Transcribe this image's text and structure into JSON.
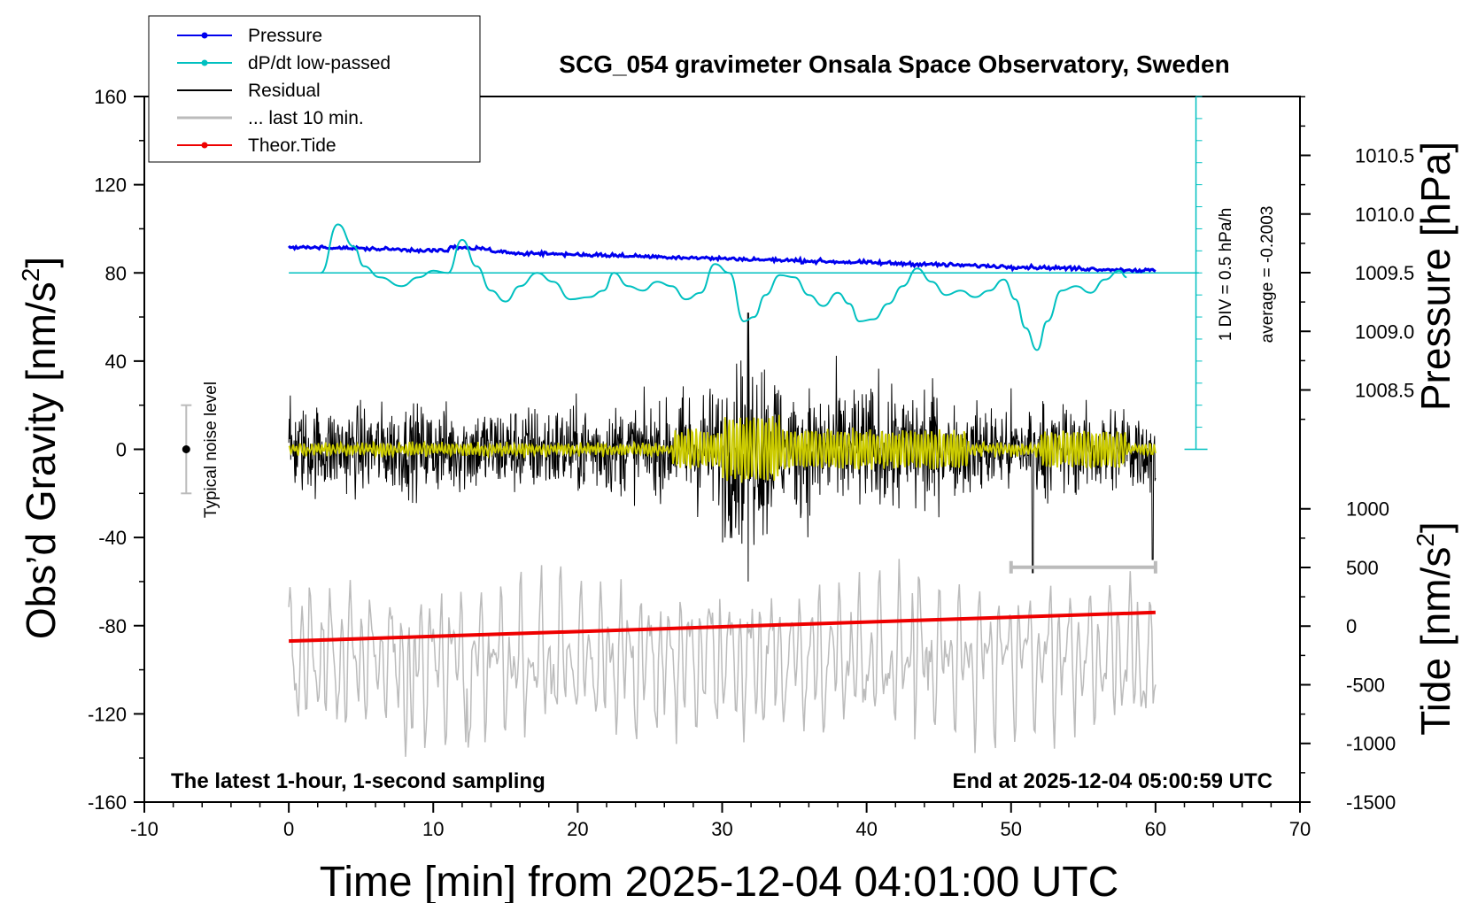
{
  "chart_data": {
    "type": "line",
    "title": "SCG_054 gravimeter Onsala Space Observatory, Sweden",
    "xlabel": "Time [min] from 2025-12-04 04:01:00 UTC",
    "ylabel_left_prefix": "Obs’d Gravity [nm/s",
    "ylabel_left_sup": "2",
    "ylabel_left_suffix": "]",
    "ylabel_pressure": "Pressure [hPa]",
    "ylabel_tide_prefix": "Tide [nm/s",
    "ylabel_tide_sup": "2",
    "ylabel_tide_suffix": "]",
    "xlim": [
      -10,
      70
    ],
    "ylim": [
      -160,
      160
    ],
    "x_ticks": [
      "-10",
      "0",
      "10",
      "20",
      "30",
      "40",
      "50",
      "60",
      "70"
    ],
    "y_ticks": [
      "160",
      "120",
      "80",
      "40",
      "0",
      "-40",
      "-80",
      "-120",
      "-160"
    ],
    "pressure_ticks": [
      "1010.5",
      "1010.0",
      "1009.5",
      "1009.0",
      "1008.5"
    ],
    "tide_ticks": [
      "1000",
      "500",
      "0",
      "-500",
      "-1000",
      "-1500"
    ],
    "pressure_range_hpa": [
      1009.61,
      1009.5
    ],
    "tide_range_nm_s2": [
      -150,
      0
    ],
    "legend": [
      {
        "label": "Pressure",
        "color": "#0000ee",
        "marker": true
      },
      {
        "label": "dP/dt low-passed",
        "color": "#00c0c0",
        "marker": true
      },
      {
        "label": "Residual",
        "color": "#000000",
        "marker": false
      },
      {
        "label": "... last 10 min.",
        "color": "#bbbbbb",
        "marker": false
      },
      {
        "label": "Theor.Tide",
        "color": "#ee0000",
        "marker": true
      }
    ],
    "annotations": {
      "noise_label": "Typical noise level",
      "noise_range": [
        -20,
        20
      ],
      "dpdt_scale": "1 DIV = 0.5 hPa/h",
      "dpdt_average": "average = -0.2003",
      "bottom_left": "The latest 1-hour, 1-second sampling",
      "bottom_right": "End at 2025-12-04 05:00:59 UTC",
      "last10_range_min": [
        50,
        60
      ]
    },
    "dpdt_curve": {
      "baseline_gravity": 80,
      "points": [
        [
          2.2,
          80
        ],
        [
          3.4,
          102
        ],
        [
          4.5,
          92
        ],
        [
          5.2,
          83
        ],
        [
          6.3,
          78
        ],
        [
          7.8,
          74
        ],
        [
          9.0,
          78
        ],
        [
          10.0,
          81
        ],
        [
          11.0,
          80
        ],
        [
          12.0,
          95
        ],
        [
          13.0,
          83
        ],
        [
          14.0,
          72
        ],
        [
          15.0,
          67
        ],
        [
          16.0,
          74
        ],
        [
          17.2,
          80
        ],
        [
          18.3,
          76
        ],
        [
          19.5,
          68
        ],
        [
          20.8,
          69
        ],
        [
          21.8,
          72
        ],
        [
          22.5,
          80
        ],
        [
          23.5,
          74
        ],
        [
          24.5,
          72
        ],
        [
          25.5,
          76
        ],
        [
          26.5,
          74
        ],
        [
          27.5,
          68
        ],
        [
          28.5,
          71
        ],
        [
          29.5,
          84
        ],
        [
          30.5,
          80
        ],
        [
          31.5,
          58
        ],
        [
          32.2,
          60
        ],
        [
          33.0,
          70
        ],
        [
          34.0,
          79
        ],
        [
          35.0,
          78
        ],
        [
          36.0,
          70
        ],
        [
          37.0,
          65
        ],
        [
          38.0,
          71
        ],
        [
          38.8,
          66
        ],
        [
          39.5,
          58
        ],
        [
          40.5,
          59
        ],
        [
          41.5,
          66
        ],
        [
          42.5,
          74
        ],
        [
          43.5,
          82
        ],
        [
          44.5,
          76
        ],
        [
          45.5,
          70
        ],
        [
          46.5,
          72
        ],
        [
          47.5,
          69
        ],
        [
          48.5,
          72
        ],
        [
          49.5,
          77
        ],
        [
          50.3,
          68
        ],
        [
          51.0,
          55
        ],
        [
          51.8,
          45
        ],
        [
          52.5,
          58
        ],
        [
          53.5,
          72
        ],
        [
          54.5,
          74
        ],
        [
          55.5,
          71
        ],
        [
          56.5,
          77
        ],
        [
          57.5,
          81
        ],
        [
          58.0,
          78
        ]
      ]
    },
    "tide_line": {
      "x": [
        0,
        60
      ],
      "gravity": [
        -87,
        -74
      ]
    }
  }
}
